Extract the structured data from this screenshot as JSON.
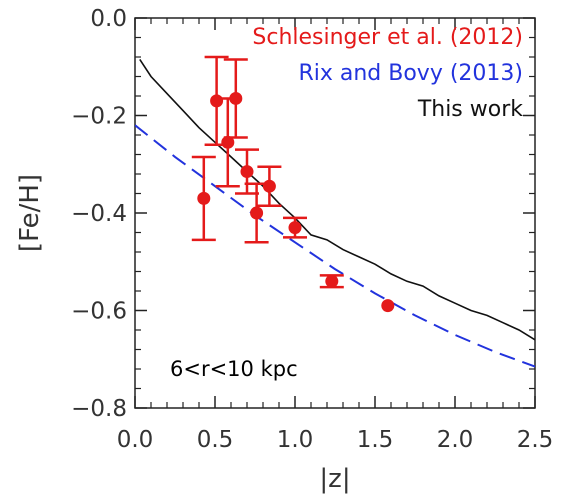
{
  "chart_data": {
    "type": "scatter",
    "xlabel": "|z|",
    "ylabel": "[Fe/H]",
    "xlim": [
      0.0,
      2.5
    ],
    "ylim": [
      -0.8,
      0.0
    ],
    "xticks": [
      0.0,
      0.5,
      1.0,
      1.5,
      2.0,
      2.5
    ],
    "xtick_labels": [
      "0.0",
      "0.5",
      "1.0",
      "1.5",
      "2.0",
      "2.5"
    ],
    "yticks": [
      0.0,
      -0.2,
      -0.4,
      -0.6,
      -0.8
    ],
    "ytick_labels": [
      "0.0",
      "−0.2",
      "−0.4",
      "−0.6",
      "−0.8"
    ],
    "grid": false,
    "legend_position": "top-right",
    "annotation": "6<r<10 kpc",
    "series": [
      {
        "name": "Schlesinger et al. (2012)",
        "kind": "points-with-errorbars",
        "color": "#e41a1a",
        "points": [
          {
            "x": 0.43,
            "y": -0.37,
            "err": 0.085
          },
          {
            "x": 0.51,
            "y": -0.17,
            "err": 0.09
          },
          {
            "x": 0.58,
            "y": -0.255,
            "err": 0.09
          },
          {
            "x": 0.63,
            "y": -0.165,
            "err": 0.08
          },
          {
            "x": 0.7,
            "y": -0.315,
            "err": 0.045
          },
          {
            "x": 0.76,
            "y": -0.4,
            "err": 0.06
          },
          {
            "x": 0.84,
            "y": -0.345,
            "err": 0.04
          },
          {
            "x": 1.0,
            "y": -0.43,
            "err": 0.02
          },
          {
            "x": 1.23,
            "y": -0.54,
            "err": 0.012
          },
          {
            "x": 1.58,
            "y": -0.59,
            "err": 0.006
          }
        ]
      },
      {
        "name": "Rix and Bovy (2013)",
        "kind": "dashed-line",
        "color": "#2233dd",
        "x": [
          0.0,
          0.25,
          0.5,
          0.75,
          1.0,
          1.25,
          1.5,
          1.75,
          2.0,
          2.25,
          2.5
        ],
        "y": [
          -0.22,
          -0.285,
          -0.345,
          -0.405,
          -0.46,
          -0.515,
          -0.565,
          -0.61,
          -0.65,
          -0.685,
          -0.715
        ]
      },
      {
        "name": "This work",
        "kind": "solid-line",
        "color": "#111111",
        "x": [
          0.03,
          0.1,
          0.2,
          0.3,
          0.4,
          0.5,
          0.6,
          0.7,
          0.8,
          0.9,
          1.0,
          1.1,
          1.2,
          1.3,
          1.4,
          1.5,
          1.6,
          1.7,
          1.8,
          1.9,
          2.0,
          2.1,
          2.2,
          2.3,
          2.4,
          2.5
        ],
        "y": [
          -0.085,
          -0.12,
          -0.155,
          -0.19,
          -0.225,
          -0.255,
          -0.285,
          -0.315,
          -0.345,
          -0.38,
          -0.41,
          -0.445,
          -0.455,
          -0.475,
          -0.49,
          -0.505,
          -0.525,
          -0.54,
          -0.55,
          -0.57,
          -0.585,
          -0.6,
          -0.61,
          -0.625,
          -0.64,
          -0.66
        ]
      }
    ]
  }
}
